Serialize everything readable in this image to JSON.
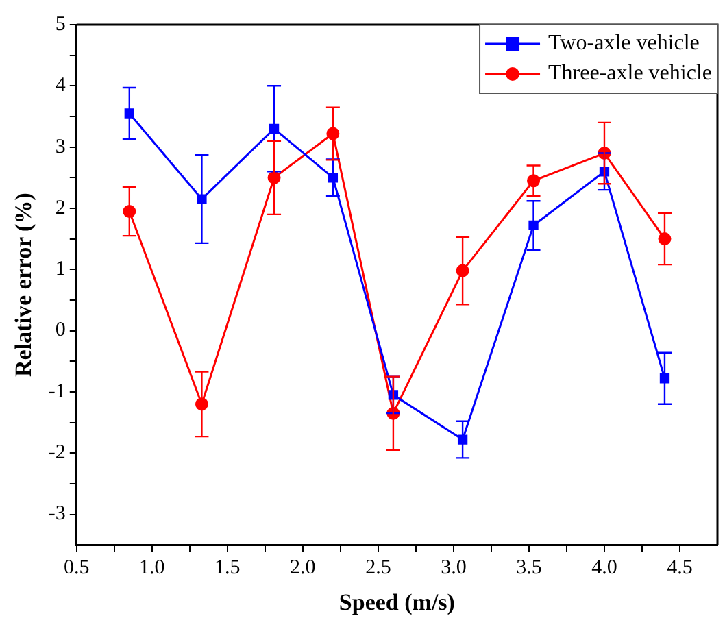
{
  "chart_data": {
    "type": "line",
    "xlabel": "Speed (m/s)",
    "ylabel": "Relative error (%)",
    "xlim": [
      0.5,
      4.75
    ],
    "xticks": [
      0.5,
      {
        "value": 1,
        "label": "1.0"
      },
      1.5,
      {
        "value": 2,
        "label": "2.0"
      },
      2.5,
      {
        "value": 3,
        "label": "3.0"
      },
      3.5,
      {
        "value": 4,
        "label": "4.0"
      },
      4.5
    ],
    "ylim": [
      -3.5,
      5
    ],
    "yticks": [
      -3,
      -2,
      -1,
      0,
      1,
      2,
      3,
      4,
      5
    ],
    "x": [
      0.85,
      1.33,
      1.81,
      2.2,
      2.6,
      3.06,
      3.53,
      4.0,
      4.4
    ],
    "series": [
      {
        "name": "Two-axle vehicle",
        "color": "#0000ff",
        "marker": "square",
        "values": [
          3.55,
          2.15,
          3.3,
          2.5,
          -1.05,
          -1.78,
          1.72,
          2.6,
          -0.78
        ],
        "errors": [
          0.42,
          0.72,
          0.7,
          0.3,
          0.3,
          0.3,
          0.4,
          0.3,
          0.42
        ]
      },
      {
        "name": "Three-axle vehicle",
        "color": "#ff0000",
        "marker": "circle",
        "values": [
          1.95,
          -1.2,
          2.5,
          3.22,
          -1.35,
          0.98,
          2.45,
          2.9,
          1.5
        ],
        "errors": [
          0.4,
          0.53,
          0.6,
          0.43,
          0.6,
          0.55,
          0.25,
          0.5,
          0.42
        ]
      }
    ],
    "grid": false,
    "legend": "top right",
    "line_style": "solid"
  }
}
